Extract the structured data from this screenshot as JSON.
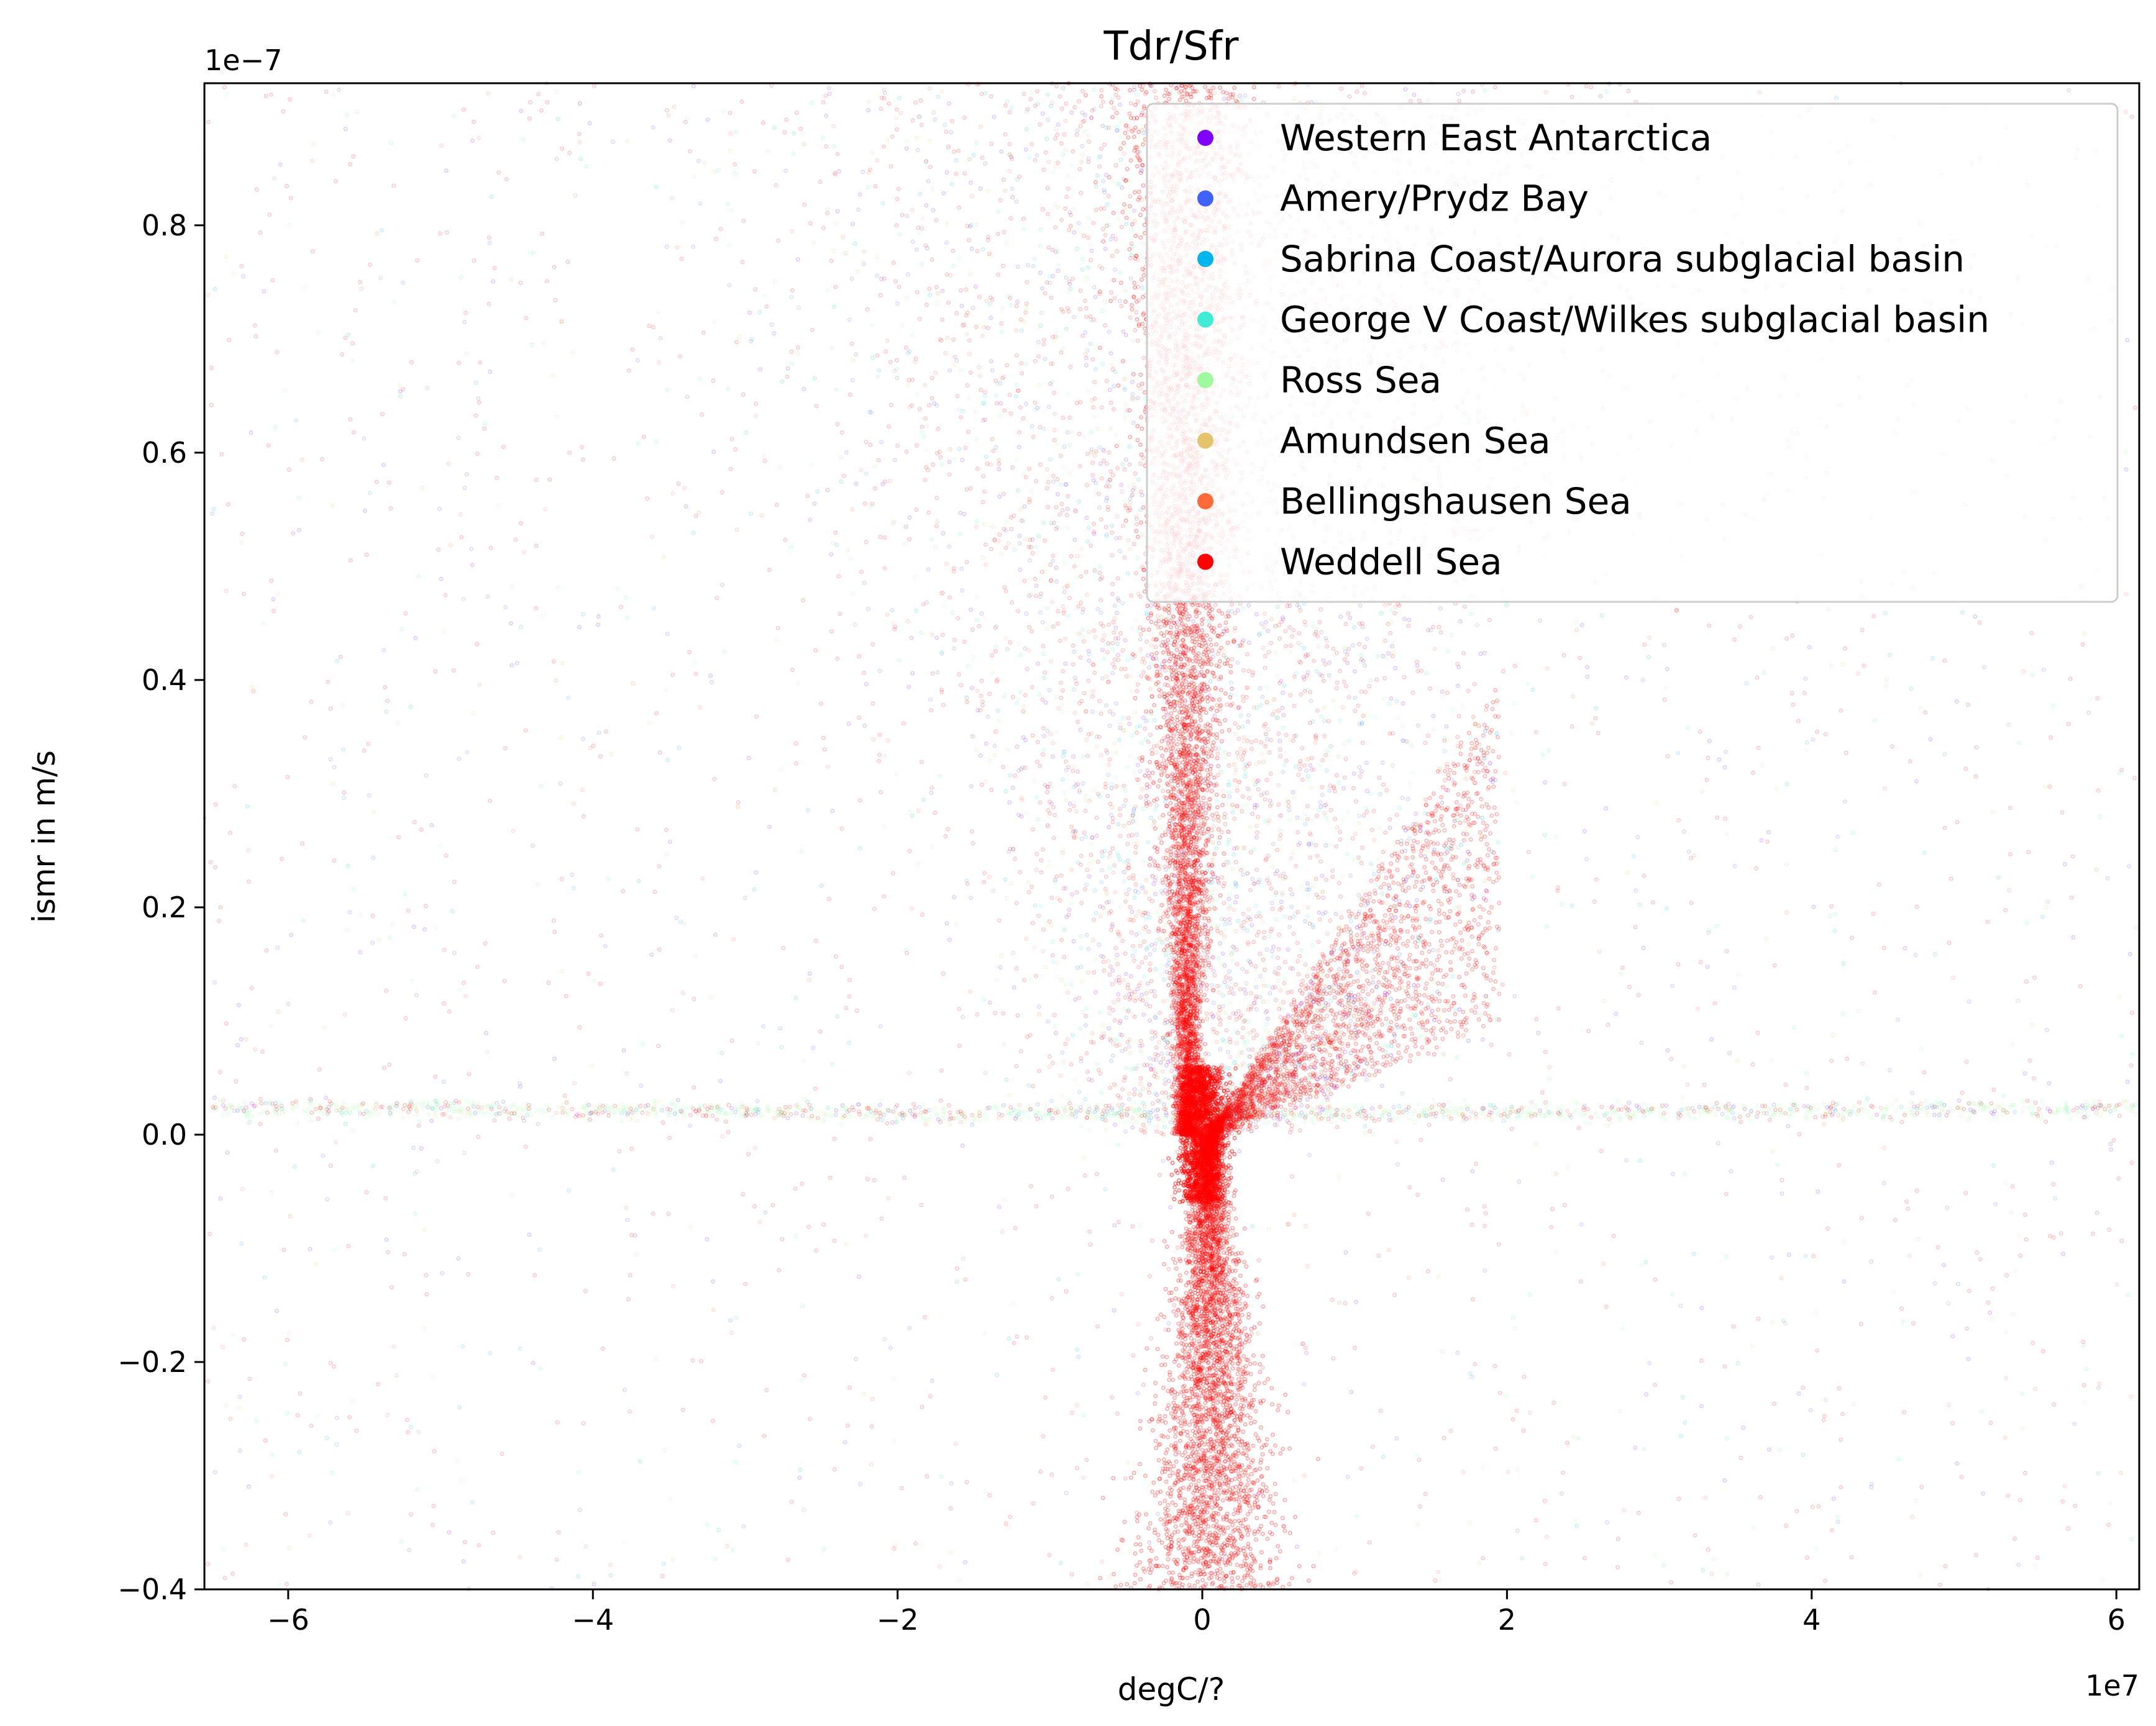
{
  "chart_data": {
    "type": "scatter",
    "title": "Tdr/Sfr",
    "xlabel": "degC/?",
    "ylabel": "ismr in m/s",
    "x_offset_label": "1e7",
    "y_offset_label": "1e−7",
    "xlim": [
      -6.55,
      6.15
    ],
    "ylim": [
      -0.4,
      0.925
    ],
    "x_ticks": [
      {
        "value": -6,
        "label": "−6"
      },
      {
        "value": -4,
        "label": "−4"
      },
      {
        "value": -2,
        "label": "−2"
      },
      {
        "value": 0,
        "label": "0"
      },
      {
        "value": 2,
        "label": "2"
      },
      {
        "value": 4,
        "label": "4"
      },
      {
        "value": 6,
        "label": "6"
      }
    ],
    "y_ticks": [
      {
        "value": -0.4,
        "label": "−0.4"
      },
      {
        "value": -0.2,
        "label": "−0.2"
      },
      {
        "value": 0.0,
        "label": "0.0"
      },
      {
        "value": 0.2,
        "label": "0.2"
      },
      {
        "value": 0.4,
        "label": "0.4"
      },
      {
        "value": 0.6,
        "label": "0.6"
      },
      {
        "value": 0.8,
        "label": "0.8"
      }
    ],
    "grid": false,
    "legend_position": "top-right",
    "series": [
      {
        "name": "Western East Antarctica",
        "color": "#8000ff"
      },
      {
        "name": "Amery/Prydz Bay",
        "color": "#4062fa"
      },
      {
        "name": "Sabrina Coast/Aurora subglacial basin",
        "color": "#00b5eb"
      },
      {
        "name": "George V Coast/Wilkes subglacial basin",
        "color": "#40ecd4"
      },
      {
        "name": "Ross Sea",
        "color": "#9ffa9f"
      },
      {
        "name": "Amundsen Sea",
        "color": "#e6c46e"
      },
      {
        "name": "Bellingshausen Sea",
        "color": "#ff6a3b"
      },
      {
        "name": "Weddell Sea",
        "color": "#ff0000"
      }
    ]
  }
}
